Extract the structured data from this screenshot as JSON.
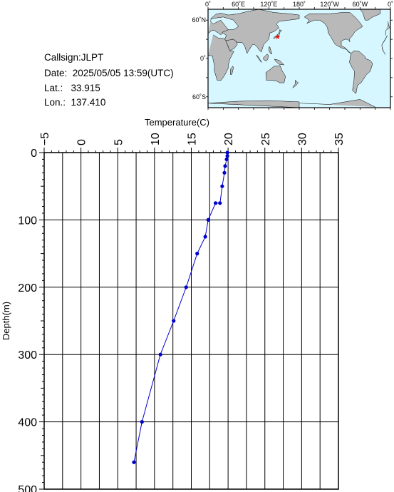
{
  "header": {
    "callsign": "Callsign:JLPT",
    "date": "Date:  2025/05/05 13:59(UTC)",
    "lat": "Lat.:   33.915",
    "lon": "Lon.:  137.410"
  },
  "map": {
    "top_lon_labels": [
      "0˚",
      "60˚E",
      "120˚E",
      "180˚",
      "120˚W",
      "60˚W",
      "0˚"
    ],
    "lat_labels": [
      "60˚N",
      "0˚",
      "60˚S"
    ],
    "ocean_color": "#d6f7ff",
    "land_color": "#b9b9b9",
    "marker_color": "#ff0000",
    "marker_lat": 33.915,
    "marker_lon": 137.41
  },
  "chart_data": {
    "type": "line",
    "title": "",
    "xlabel": "Temperature(C)",
    "ylabel": "Depth(m)",
    "xlim": [
      -5,
      35
    ],
    "ylim": [
      0,
      500
    ],
    "y_inverted": true,
    "x_ticks": [
      "−5",
      "0",
      "5",
      "10",
      "15",
      "20",
      "25",
      "30",
      "35"
    ],
    "y_ticks": [
      "0",
      "100",
      "200",
      "300",
      "400",
      "500"
    ],
    "grid": true,
    "line_color": "#0000cc",
    "series": [
      {
        "temperature": [
          19.9,
          19.9,
          19.8,
          19.6,
          19.5,
          19.2,
          18.9,
          18.3,
          17.3,
          16.9,
          15.8,
          14.3,
          12.6,
          10.8,
          8.3,
          7.2
        ],
        "depth": [
          0,
          5,
          10,
          20,
          30,
          50,
          75,
          75,
          100,
          125,
          150,
          200,
          250,
          300,
          400,
          460
        ]
      }
    ]
  }
}
